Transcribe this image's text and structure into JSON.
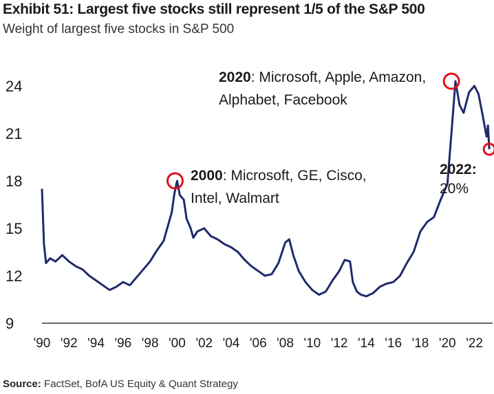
{
  "header": {
    "title": "Exhibit 51: Largest five stocks still represent 1/5 of the S&P 500",
    "subtitle": "Weight of largest five stocks in S&P 500"
  },
  "footer": {
    "source_label": "Source:",
    "source_text": "FactSet, BofA US Equity & Quant Strategy"
  },
  "colors": {
    "line": "#1f2a6b",
    "marker": "#e0101a",
    "text": "#1a1a1a"
  },
  "chart_data": {
    "type": "line",
    "title": "Exhibit 51: Largest five stocks still represent 1/5 of the S&P 500",
    "subtitle": "Weight of largest five stocks in S&P 500",
    "xlabel": "",
    "ylabel": "",
    "ylim": [
      9,
      25
    ],
    "yticks": [
      9,
      12,
      15,
      18,
      21,
      24
    ],
    "xlim": [
      1990,
      2023.5
    ],
    "xticks": [
      1990,
      1992,
      1994,
      1996,
      1998,
      2000,
      2002,
      2004,
      2006,
      2008,
      2010,
      2012,
      2014,
      2016,
      2018,
      2020,
      2022
    ],
    "xtick_labels": [
      "'90",
      "'92",
      "'94",
      "'96",
      "'98",
      "'00",
      "'02",
      "'04",
      "'06",
      "'08",
      "'10",
      "'12",
      "'14",
      "'16",
      "'18",
      "'20",
      "'22"
    ],
    "grid": false,
    "series": [
      {
        "x": [
          1990.0,
          1990.15,
          1990.3,
          1990.6,
          1991.0,
          1991.5,
          1992.0,
          1992.5,
          1993.0,
          1993.5,
          1994.0,
          1994.5,
          1995.0,
          1995.5,
          1996.0,
          1996.5,
          1997.0,
          1997.5,
          1998.0,
          1998.5,
          1999.0,
          1999.3,
          1999.6,
          1999.8,
          2000.0,
          2000.2,
          2000.5,
          2000.7,
          2001.0,
          2001.2,
          2001.5,
          2002.0,
          2002.5,
          2003.0,
          2003.5,
          2004.0,
          2004.5,
          2005.0,
          2005.5,
          2006.0,
          2006.5,
          2007.0,
          2007.5,
          2008.0,
          2008.3,
          2008.6,
          2009.0,
          2009.5,
          2010.0,
          2010.5,
          2011.0,
          2011.5,
          2012.0,
          2012.4,
          2012.8,
          2013.0,
          2013.3,
          2013.6,
          2014.0,
          2014.5,
          2015.0,
          2015.5,
          2016.0,
          2016.5,
          2017.0,
          2017.5,
          2018.0,
          2018.5,
          2019.0,
          2019.5,
          2020.0,
          2020.3,
          2020.6,
          2020.9,
          2021.2,
          2021.6,
          2022.0,
          2022.3,
          2022.6,
          2022.9,
          2023.0,
          2023.1
        ],
        "y": [
          17.5,
          14.0,
          12.8,
          13.1,
          12.9,
          13.3,
          12.9,
          12.6,
          12.4,
          12.0,
          11.7,
          11.4,
          11.1,
          11.3,
          11.6,
          11.4,
          11.9,
          12.4,
          12.9,
          13.6,
          14.2,
          15.1,
          16.0,
          17.2,
          18.0,
          17.1,
          16.8,
          15.6,
          15.0,
          14.4,
          14.8,
          15.0,
          14.5,
          14.3,
          14.0,
          13.8,
          13.5,
          13.0,
          12.6,
          12.3,
          12.0,
          12.1,
          12.8,
          14.1,
          14.3,
          13.3,
          12.3,
          11.6,
          11.1,
          10.8,
          11.0,
          11.7,
          12.3,
          13.0,
          12.9,
          11.6,
          11.0,
          10.8,
          10.7,
          10.9,
          11.3,
          11.5,
          11.6,
          12.0,
          12.8,
          13.5,
          14.8,
          15.4,
          15.7,
          16.8,
          17.8,
          21.0,
          24.3,
          22.8,
          22.3,
          23.6,
          24.0,
          23.5,
          22.2,
          20.8,
          21.5,
          20.0
        ]
      }
    ],
    "annotations": [
      {
        "year_label": "2020",
        "text_line1": ": Microsoft,  Apple, Amazon,",
        "text_line2": "Alphabet,  Facebook",
        "x": 2020.3,
        "y": 24.3
      },
      {
        "year_label": "2000",
        "text_line1": ": Microsoft,  GE, Cisco,",
        "text_line2": "Intel, Walmart",
        "x": 1999.85,
        "y": 18.0
      },
      {
        "year_label": "2022:",
        "text_line1": "",
        "text_line2": "20%",
        "x": 2023.1,
        "y": 20.0
      }
    ]
  }
}
